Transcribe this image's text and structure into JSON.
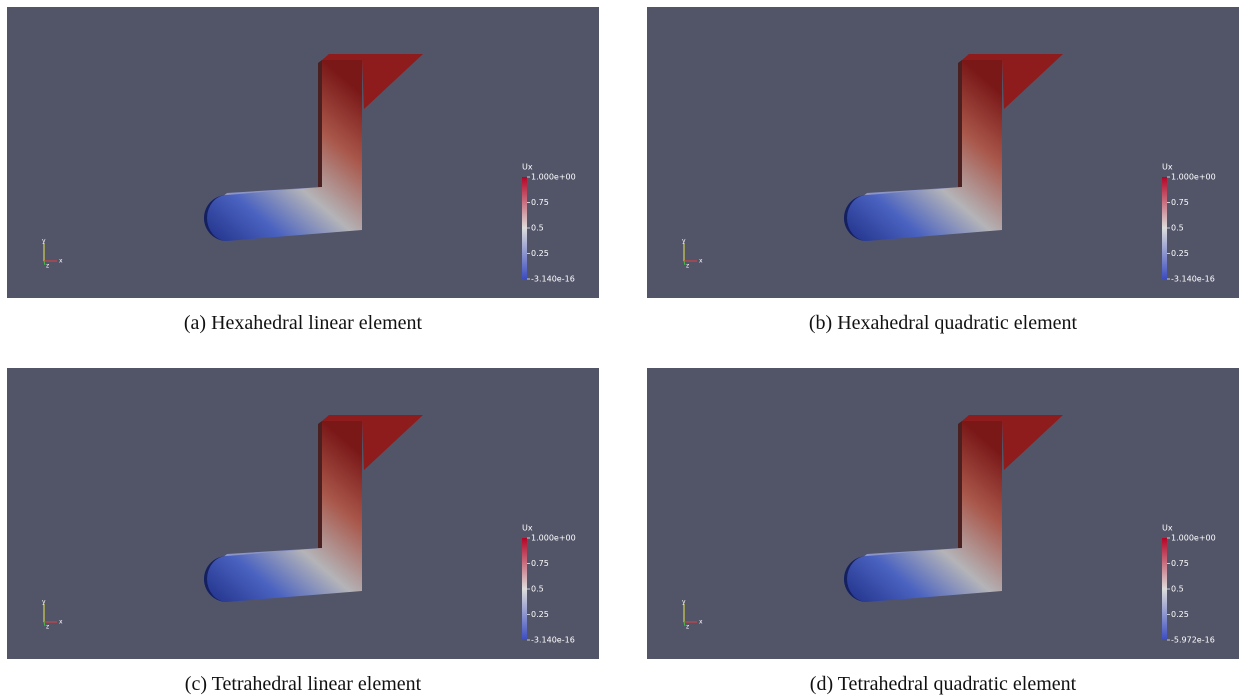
{
  "panels": [
    {
      "caption": "(a) Hexahedral linear element",
      "legend": {
        "title": "Ux",
        "labels": [
          "1.000e+00",
          "0.75",
          "0.5",
          "0.25",
          "-3.140e-16"
        ]
      },
      "axes": [
        "y",
        "z",
        "x"
      ]
    },
    {
      "caption": "(b) Hexahedral quadratic element",
      "legend": {
        "title": "Ux",
        "labels": [
          "1.000e+00",
          "0.75",
          "0.5",
          "0.25",
          "-3.140e-16"
        ]
      },
      "axes": [
        "y",
        "z",
        "x"
      ]
    },
    {
      "caption": "(c) Tetrahedral linear element",
      "legend": {
        "title": "Ux",
        "labels": [
          "1.000e+00",
          "0.75",
          "0.5",
          "0.25",
          "-3.140e-16"
        ]
      },
      "axes": [
        "y",
        "z",
        "x"
      ]
    },
    {
      "caption": "(d) Tetrahedral quadratic element",
      "legend": {
        "title": "Ux",
        "labels": [
          "1.000e+00",
          "0.75",
          "0.5",
          "0.25",
          "-5.972e-16"
        ]
      },
      "axes": [
        "y",
        "z",
        "x"
      ]
    }
  ]
}
